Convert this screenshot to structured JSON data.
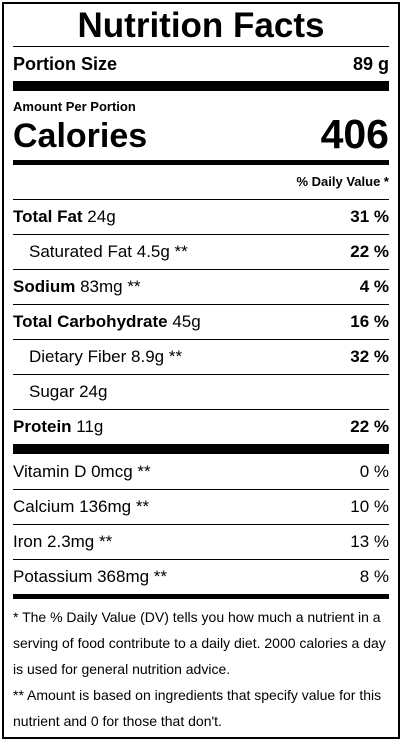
{
  "title": "Nutrition Facts",
  "portion": {
    "label": "Portion Size",
    "value": "89 g"
  },
  "amount_per": "Amount Per Portion",
  "calories": {
    "label": "Calories",
    "value": "406"
  },
  "dv_header": "% Daily Value *",
  "nutrients_main": [
    {
      "name": "Total Fat",
      "amount": " 24g",
      "pct": "31 %"
    },
    {
      "name": "Saturated Fat",
      "amount": " 4.5g **",
      "pct": "22 %"
    },
    {
      "name": "Sodium",
      "amount": " 83mg **",
      "pct": "4 %"
    },
    {
      "name": "Total Carbohydrate",
      "amount": " 45g",
      "pct": "16 %"
    },
    {
      "name": "Dietary Fiber",
      "amount": " 8.9g **",
      "pct": "32 %"
    },
    {
      "name": "Sugar",
      "amount": " 24g",
      "pct": ""
    },
    {
      "name": "Protein",
      "amount": " 11g",
      "pct": "22 %"
    }
  ],
  "nutrients_minor": [
    {
      "label": "Vitamin D 0mcg **",
      "pct": "0 %"
    },
    {
      "label": "Calcium 136mg **",
      "pct": "10 %"
    },
    {
      "label": "Iron 2.3mg **",
      "pct": "13 %"
    },
    {
      "label": "Potassium 368mg **",
      "pct": "8 %"
    }
  ],
  "footnotes": [
    "* The % Daily Value (DV) tells you how much a nutrient in a serving of food contribute to a daily diet. 2000 calories a day is used for general nutrition advice.",
    "** Amount is based on ingredients that specify value for this nutrient and 0 for those that don't."
  ]
}
